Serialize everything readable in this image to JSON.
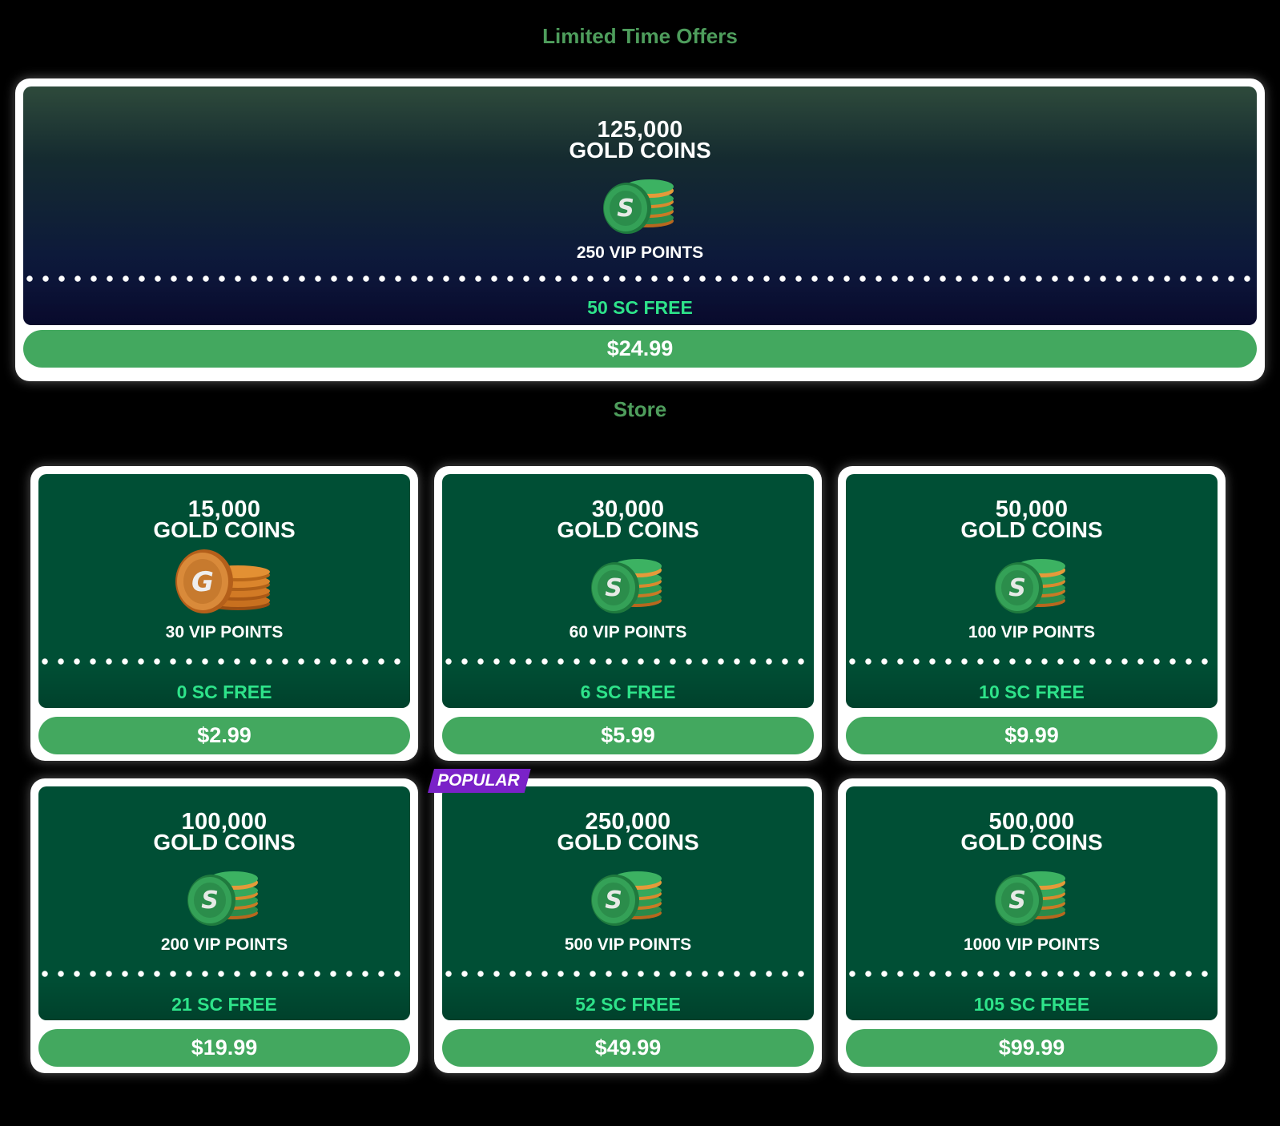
{
  "sections": {
    "limited_title": "Limited Time Offers",
    "store_title": "Store"
  },
  "featured": {
    "amount": "125,000",
    "unit": "GOLD COINS",
    "vip": "250 VIP POINTS",
    "sc_free": "50 SC FREE",
    "price": "$24.99",
    "coin_icon": "green-sweeps-coin-stack-icon"
  },
  "store": {
    "items": [
      {
        "amount": "15,000",
        "unit": "GOLD COINS",
        "vip": "30 VIP POINTS",
        "sc_free": "0 SC FREE",
        "price": "$2.99",
        "coin_icon": "gold-coin-stack-icon"
      },
      {
        "amount": "30,000",
        "unit": "GOLD COINS",
        "vip": "60 VIP POINTS",
        "sc_free": "6 SC FREE",
        "price": "$5.99",
        "coin_icon": "green-sweeps-coin-stack-icon"
      },
      {
        "amount": "50,000",
        "unit": "GOLD COINS",
        "vip": "100 VIP POINTS",
        "sc_free": "10 SC FREE",
        "price": "$9.99",
        "coin_icon": "green-sweeps-coin-stack-icon"
      },
      {
        "amount": "100,000",
        "unit": "GOLD COINS",
        "vip": "200 VIP POINTS",
        "sc_free": "21 SC FREE",
        "price": "$19.99",
        "coin_icon": "green-sweeps-coin-stack-icon"
      },
      {
        "amount": "250,000",
        "unit": "GOLD COINS",
        "vip": "500 VIP POINTS",
        "sc_free": "52 SC FREE",
        "price": "$49.99",
        "coin_icon": "green-sweeps-coin-stack-icon",
        "badge": "POPULAR"
      },
      {
        "amount": "500,000",
        "unit": "GOLD COINS",
        "vip": "1000 VIP POINTS",
        "sc_free": "105 SC FREE",
        "price": "$99.99",
        "coin_icon": "green-sweeps-coin-stack-icon"
      }
    ]
  },
  "colors": {
    "accent_green": "#43a85f",
    "title_green": "#4e9d5c",
    "sc_green": "#2ee38a",
    "card_green": "#004f35",
    "badge_purple": "#7a22c8"
  }
}
